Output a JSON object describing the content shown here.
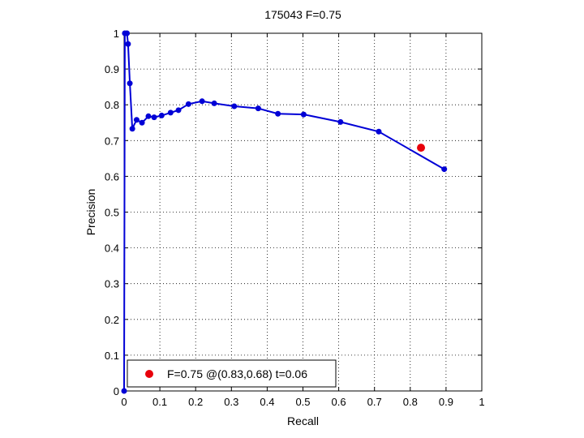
{
  "chart_data": {
    "type": "line",
    "title": "175043 F=0.75",
    "xlabel": "Recall",
    "ylabel": "Precision",
    "xlim": [
      0,
      1
    ],
    "ylim": [
      0,
      1
    ],
    "x_ticks": [
      "0",
      "0.1",
      "0.2",
      "0.3",
      "0.4",
      "0.5",
      "0.6",
      "0.7",
      "0.8",
      "0.9",
      "1"
    ],
    "y_ticks": [
      "0",
      "0.1",
      "0.2",
      "0.3",
      "0.4",
      "0.5",
      "0.6",
      "0.7",
      "0.8",
      "0.9",
      "1"
    ],
    "grid": true,
    "series": [
      {
        "color": "#0000d6",
        "points": [
          [
            0,
            0
          ],
          [
            0.002,
            1.0
          ],
          [
            0.008,
            1.0
          ],
          [
            0.011,
            0.97
          ],
          [
            0.016,
            0.86
          ],
          [
            0.023,
            0.733
          ],
          [
            0.035,
            0.758
          ],
          [
            0.05,
            0.75
          ],
          [
            0.068,
            0.768
          ],
          [
            0.084,
            0.765
          ],
          [
            0.105,
            0.77
          ],
          [
            0.13,
            0.778
          ],
          [
            0.152,
            0.785
          ],
          [
            0.18,
            0.802
          ],
          [
            0.218,
            0.81
          ],
          [
            0.252,
            0.804
          ],
          [
            0.308,
            0.796
          ],
          [
            0.375,
            0.79
          ],
          [
            0.43,
            0.775
          ],
          [
            0.502,
            0.773
          ],
          [
            0.605,
            0.752
          ],
          [
            0.712,
            0.725
          ],
          [
            0.895,
            0.62
          ]
        ]
      }
    ],
    "highlight": {
      "x": 0.83,
      "y": 0.68,
      "color": "#e8000b"
    },
    "legend": {
      "position": "bottom-left",
      "label": "F=0.75 @(0.83,0.68) t=0.06"
    }
  }
}
